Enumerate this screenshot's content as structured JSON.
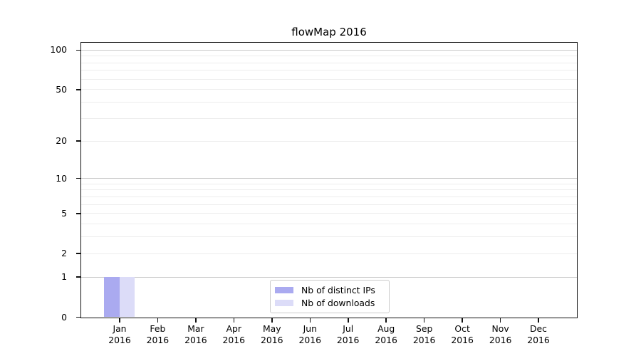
{
  "chart_data": {
    "type": "bar",
    "title": "flowMap 2016",
    "x_categories": [
      "Jan",
      "Feb",
      "Mar",
      "Apr",
      "May",
      "Jun",
      "Jul",
      "Aug",
      "Sep",
      "Oct",
      "Nov",
      "Dec"
    ],
    "x_sub_label": "2016",
    "series": [
      {
        "name": "Nb of distinct IPs",
        "color": "#aaaaf0",
        "values": [
          1,
          0,
          0,
          0,
          0,
          0,
          0,
          0,
          0,
          0,
          0,
          0
        ]
      },
      {
        "name": "Nb of downloads",
        "color": "#dcdcf8",
        "values": [
          1,
          0,
          0,
          0,
          0,
          0,
          0,
          0,
          0,
          0,
          0,
          0
        ]
      }
    ],
    "y_axis": {
      "scale": "log1p",
      "labeled_ticks": [
        0,
        1,
        2,
        5,
        10,
        20,
        50,
        100
      ],
      "major_gridlines": [
        1,
        10,
        100
      ],
      "minor_gridlines": [
        2,
        3,
        4,
        5,
        6,
        7,
        8,
        9,
        20,
        30,
        40,
        50,
        60,
        70,
        80,
        90
      ],
      "y_min": 0,
      "y_top_value": 113
    },
    "legend": {
      "position": "lower center",
      "entries": [
        "Nb of distinct IPs",
        "Nb of downloads"
      ]
    },
    "grid": true,
    "colors": {
      "frame": "#111111",
      "major_grid": "#c9c9c9",
      "minor_grid": "#ededed",
      "background": "#ffffff"
    }
  }
}
